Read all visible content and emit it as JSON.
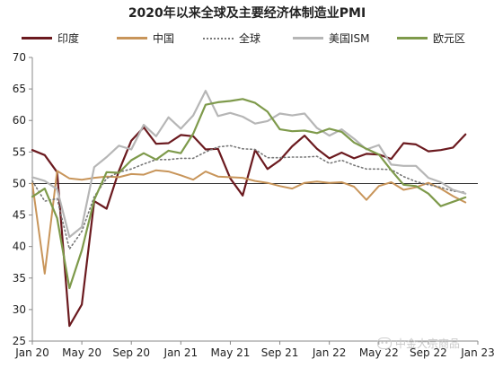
{
  "chart_data": {
    "type": "line",
    "title": "2020年以来全球及主要经济体制造业PMI",
    "xlabel": "",
    "ylabel": "",
    "ylim": [
      25,
      70
    ],
    "yticks": [
      25,
      30,
      35,
      40,
      45,
      50,
      55,
      60,
      65,
      70
    ],
    "reference_line": 50,
    "x": [
      "Jan 20",
      "Feb 20",
      "Mar 20",
      "Apr 20",
      "May 20",
      "Jun 20",
      "Jul 20",
      "Aug 20",
      "Sep 20",
      "Oct 20",
      "Nov 20",
      "Dec 20",
      "Jan 21",
      "Feb 21",
      "Mar 21",
      "Apr 21",
      "May 21",
      "Jun 21",
      "Jul 21",
      "Aug 21",
      "Sep 21",
      "Oct 21",
      "Nov 21",
      "Dec 21",
      "Jan 22",
      "Feb 22",
      "Mar 22",
      "Apr 22",
      "May 22",
      "Jun 22",
      "Jul 22",
      "Aug 22",
      "Sep 22",
      "Oct 22",
      "Nov 22",
      "Dec 22",
      "Jan 23"
    ],
    "xtick_labels": [
      "Jan 20",
      "May 20",
      "Sep 20",
      "Jan 21",
      "May 21",
      "Sep 21",
      "Jan 22",
      "May 22",
      "Sep 22",
      "Jan 23"
    ],
    "series": [
      {
        "name": "印度",
        "color": "#6b1a1f",
        "style": "solid",
        "width": 2.2,
        "values": [
          55.3,
          54.5,
          51.8,
          27.4,
          30.8,
          47.2,
          46.0,
          52.0,
          56.8,
          58.9,
          56.3,
          56.4,
          57.7,
          57.5,
          55.4,
          55.5,
          50.8,
          48.1,
          55.3,
          52.3,
          53.7,
          55.9,
          57.6,
          55.5,
          54.0,
          54.9,
          54.0,
          54.7,
          54.6,
          53.9,
          56.4,
          56.2,
          55.1,
          55.3,
          55.7,
          57.8,
          null
        ]
      },
      {
        "name": "中国",
        "color": "#c8955a",
        "style": "solid",
        "width": 2.0,
        "values": [
          50.0,
          35.7,
          52.0,
          50.8,
          50.6,
          50.9,
          51.1,
          51.0,
          51.5,
          51.4,
          52.1,
          51.9,
          51.3,
          50.6,
          51.9,
          51.1,
          51.0,
          50.9,
          50.4,
          50.1,
          49.6,
          49.2,
          50.1,
          50.3,
          50.1,
          50.2,
          49.5,
          47.4,
          49.6,
          50.2,
          49.0,
          49.4,
          50.1,
          49.2,
          48.0,
          47.0,
          null
        ]
      },
      {
        "name": "全球",
        "color": "#777777",
        "style": "dotted",
        "width": 1.6,
        "values": [
          50.4,
          47.2,
          47.6,
          39.6,
          42.4,
          47.9,
          50.8,
          51.8,
          52.3,
          53.1,
          53.8,
          53.8,
          54.0,
          54.0,
          55.0,
          55.8,
          56.0,
          55.5,
          55.4,
          54.1,
          54.1,
          54.2,
          54.2,
          54.3,
          53.2,
          53.7,
          52.9,
          52.3,
          52.3,
          52.2,
          51.1,
          50.3,
          49.8,
          49.4,
          48.8,
          48.6,
          null
        ]
      },
      {
        "name": "美国ISM",
        "color": "#b6b6b6",
        "style": "solid",
        "width": 2.2,
        "values": [
          51.0,
          50.4,
          49.1,
          41.5,
          43.1,
          52.6,
          54.2,
          56.0,
          55.4,
          59.3,
          57.5,
          60.5,
          58.7,
          60.8,
          64.7,
          60.7,
          61.2,
          60.6,
          59.5,
          59.9,
          61.1,
          60.8,
          61.1,
          58.8,
          57.6,
          58.6,
          57.1,
          55.4,
          56.1,
          53.0,
          52.8,
          52.8,
          50.9,
          50.2,
          49.0,
          48.4,
          null
        ]
      },
      {
        "name": "欧元区",
        "color": "#7e9a4b",
        "style": "solid",
        "width": 2.2,
        "values": [
          47.9,
          49.2,
          44.5,
          33.4,
          39.4,
          47.4,
          51.8,
          51.7,
          53.7,
          54.8,
          53.8,
          55.2,
          54.8,
          57.9,
          62.5,
          62.9,
          63.1,
          63.4,
          62.8,
          61.4,
          58.6,
          58.3,
          58.4,
          58.0,
          58.7,
          58.2,
          56.5,
          55.5,
          54.6,
          52.1,
          49.8,
          49.6,
          48.4,
          46.4,
          47.1,
          47.8,
          null
        ]
      }
    ],
    "grid": false,
    "legend_position": "top"
  },
  "watermark": {
    "text": "中金大宗商品",
    "icon": "wechat-icon"
  }
}
